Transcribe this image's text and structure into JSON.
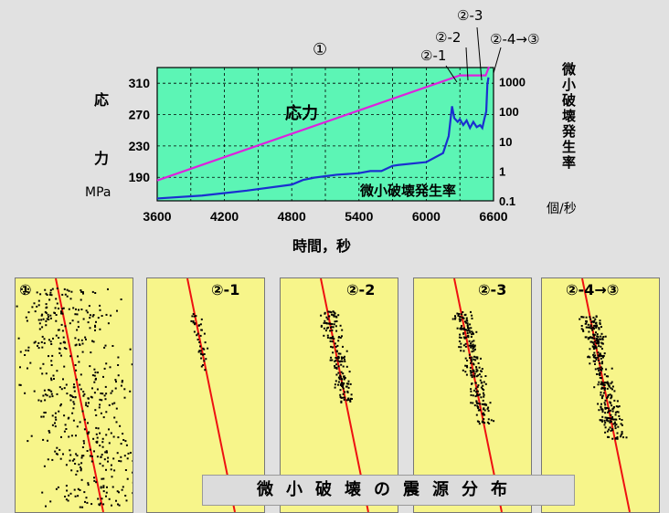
{
  "chart_data": {
    "type": "line",
    "title": "",
    "xlabel": "時間，秒",
    "x_ticks": [
      "3600",
      "4200",
      "4800",
      "5400",
      "6000",
      "6600"
    ],
    "xlim": [
      3600,
      6600
    ],
    "y_left": {
      "label_chars": "応力",
      "unit": "MPa",
      "ticks": [
        "310",
        "270",
        "230",
        "190"
      ],
      "lim": [
        160,
        330
      ]
    },
    "y_right": {
      "label_chars": "微小破壊発生率",
      "unit": "個/秒",
      "ticks": [
        "1000",
        "100",
        "10",
        "1",
        "0.1"
      ],
      "scale": "log",
      "lim": [
        0.1,
        3000
      ]
    },
    "series": [
      {
        "name": "応力",
        "axis": "left",
        "color": "#dd22dd",
        "x": [
          3600,
          6300,
          6530,
          6560
        ],
        "y": [
          186,
          320,
          320,
          331
        ]
      },
      {
        "name": "微小破壊発生率",
        "axis": "right",
        "color": "#1a2fd0",
        "x": [
          3600,
          4000,
          4400,
          4800,
          4900,
          5000,
          5200,
          5400,
          5500,
          5600,
          5700,
          5750,
          6000,
          6150,
          6200,
          6230,
          6250,
          6280,
          6300,
          6330,
          6360,
          6390,
          6420,
          6450,
          6480,
          6500,
          6520,
          6535,
          6545,
          6555
        ],
        "y": [
          0.12,
          0.15,
          0.22,
          0.35,
          0.5,
          0.6,
          0.75,
          0.85,
          1.0,
          1.0,
          1.5,
          1.6,
          2.0,
          4.0,
          15,
          150,
          60,
          45,
          55,
          35,
          50,
          28,
          45,
          30,
          35,
          28,
          60,
          100,
          800,
          1400
        ]
      }
    ],
    "stage_markers": [
      "①",
      "②-1",
      "②-2",
      "②-3",
      "②-4→③"
    ],
    "grid": true
  },
  "panels": {
    "labels": [
      "①",
      "②-1",
      "②-2",
      "②-3",
      "②-4→③"
    ]
  },
  "caption": "微小破壊の震源分布"
}
